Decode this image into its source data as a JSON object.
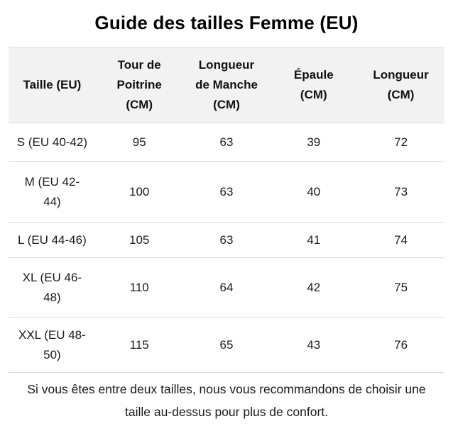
{
  "header": {
    "title": "Guide des tailles Femme (EU)"
  },
  "table": {
    "headers": [
      "Taille (EU)",
      "Tour de\nPoitrine\n(CM)",
      "Longueur\nde Manche\n(CM)",
      "Épaule\n(CM)",
      "Longueur\n(CM)"
    ],
    "rows": [
      {
        "size": "S (EU 40-42)",
        "chest": "95",
        "sleeve": "63",
        "shoulder": "39",
        "length": "72"
      },
      {
        "size": "M (EU 42-\n44)",
        "chest": "100",
        "sleeve": "63",
        "shoulder": "40",
        "length": "73"
      },
      {
        "size": "L (EU 44-46)",
        "chest": "105",
        "sleeve": "63",
        "shoulder": "41",
        "length": "74"
      },
      {
        "size": "XL (EU 46-\n48)",
        "chest": "110",
        "sleeve": "64",
        "shoulder": "42",
        "length": "75"
      },
      {
        "size": "XXL (EU 48-\n50)",
        "chest": "115",
        "sleeve": "65",
        "shoulder": "43",
        "length": "76"
      }
    ]
  },
  "footer": {
    "note": "Si vous êtes entre deux tailles, nous vous recommandons de choisir une\ntaille au-dessus pour plus de confort."
  },
  "colors": {
    "header_background": "#f2f2f2",
    "row_border": "#d9d9d9",
    "title_text": "#000000",
    "body_text": "#1a1a1a"
  }
}
